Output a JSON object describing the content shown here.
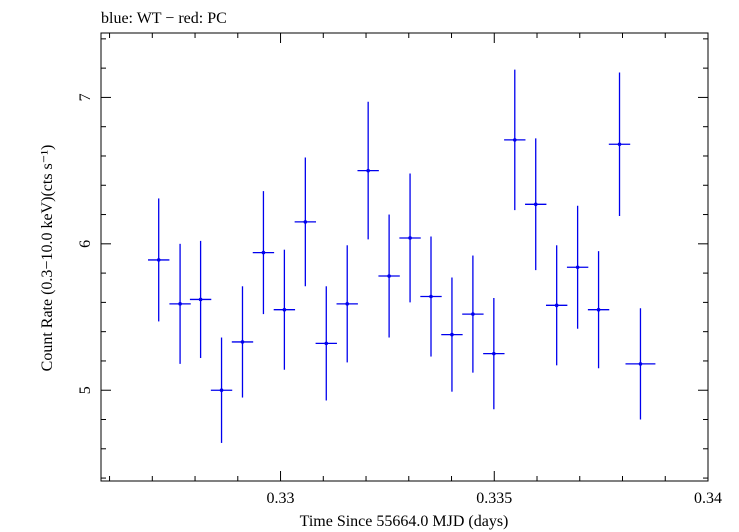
{
  "header": {
    "label": "blue: WT − red: PC"
  },
  "chart_data": {
    "type": "scatter",
    "xlabel": "Time Since 55664.0 MJD (days)",
    "ylabel": "Count Rate (0.3−10.0 keV)(cts s⁻¹)",
    "xlim": [
      0.3258,
      0.34
    ],
    "ylim": [
      4.38,
      7.44
    ],
    "x_ticks": [
      0.33,
      0.335,
      0.34
    ],
    "x_tick_labels": [
      "0.33",
      "0.335",
      "0.34"
    ],
    "y_ticks": [
      5,
      6,
      7
    ],
    "y_tick_labels": [
      "5",
      "6",
      "7"
    ],
    "grid": false,
    "colors": {
      "series": "#0000ee",
      "axis": "#000000"
    },
    "series": [
      {
        "x": [
          0.32715,
          0.32765,
          0.32813,
          0.32862,
          0.32911,
          0.3296,
          0.33009,
          0.33058,
          0.33107,
          0.33156,
          0.33205,
          0.33254,
          0.33303,
          0.33352,
          0.33401,
          0.3345,
          0.33499,
          0.33548,
          0.33597,
          0.33646,
          0.33695,
          0.33744,
          0.33793,
          0.33842
        ],
        "xerr": [
          0.00025,
          0.00025,
          0.00025,
          0.00025,
          0.00025,
          0.00025,
          0.00025,
          0.00025,
          0.00025,
          0.00025,
          0.00025,
          0.00025,
          0.00025,
          0.00025,
          0.00025,
          0.00025,
          0.00025,
          0.00025,
          0.00025,
          0.00025,
          0.00025,
          0.00025,
          0.00025,
          0.00035
        ],
        "y": [
          5.89,
          5.59,
          5.62,
          5.0,
          5.33,
          5.94,
          5.55,
          6.15,
          5.32,
          5.59,
          6.5,
          5.78,
          6.04,
          5.64,
          5.38,
          5.52,
          5.25,
          6.71,
          6.27,
          5.58,
          5.84,
          5.55,
          6.68,
          5.18
        ],
        "yerr": [
          0.42,
          0.41,
          0.4,
          0.36,
          0.38,
          0.42,
          0.41,
          0.44,
          0.39,
          0.4,
          0.47,
          0.42,
          0.44,
          0.41,
          0.39,
          0.4,
          0.38,
          0.48,
          0.45,
          0.41,
          0.42,
          0.4,
          0.49,
          0.38
        ]
      }
    ]
  }
}
